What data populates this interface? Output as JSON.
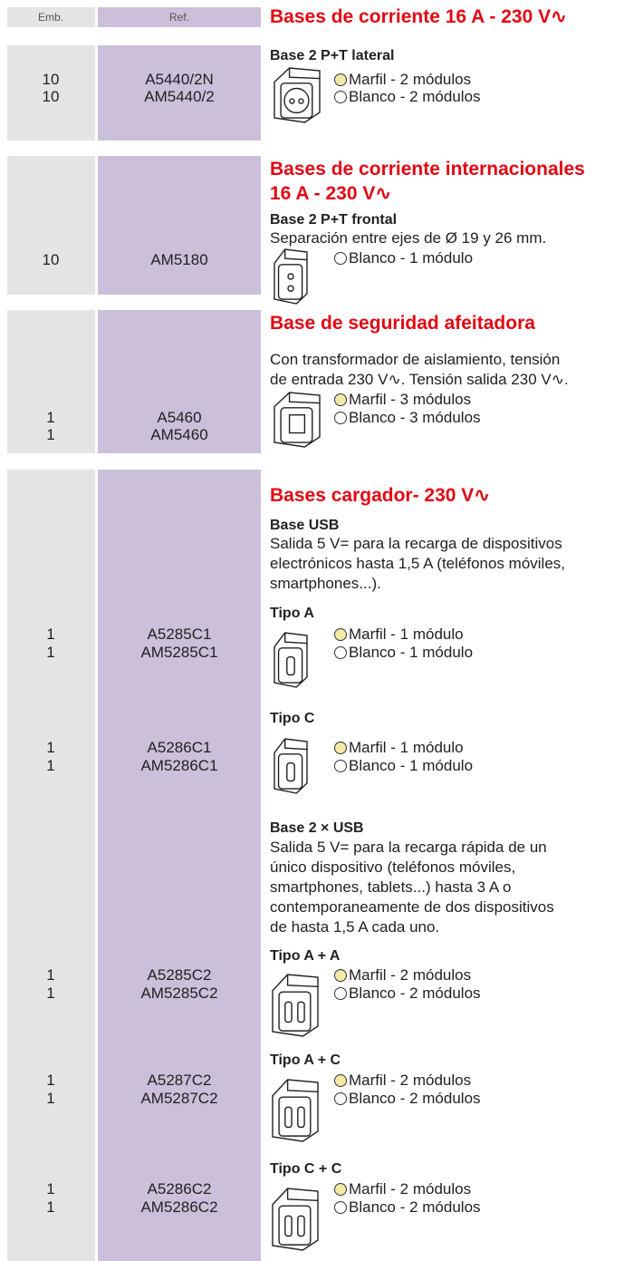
{
  "header": {
    "emb": "Emb.",
    "ref": "Ref.",
    "title": "Bases de corriente 16 A - 230 V∿"
  },
  "sections": [
    {
      "items": [
        {
          "heading": "Base 2 P+T lateral",
          "rows": [
            [
              "10",
              "A5440/2N",
              "Marfil - 2 módulos"
            ],
            [
              "10",
              "AM5440/2",
              "Blanco - 2 módulos"
            ]
          ]
        }
      ]
    },
    {
      "title": [
        "Bases de corriente internacionales",
        "16 A - 230 V∿"
      ],
      "items": [
        {
          "heading": "Base 2 P+T frontal",
          "text": [
            "Separación entre ejes de Ø 19 y 26 mm."
          ],
          "rows": [
            [
              "10",
              "AM5180",
              "Blanco - 1 módulo"
            ]
          ]
        }
      ]
    },
    {
      "title": [
        "Base de seguridad afeitadora"
      ],
      "items": [
        {
          "text": [
            "Con transformador de aislamiento, tensión",
            "de entrada 230 V∿. Tensión salida 230 V∿."
          ],
          "rows": [
            [
              "1",
              "A5460",
              "Marfil - 3 módulos"
            ],
            [
              "1",
              "AM5460",
              "Blanco - 3 módulos"
            ]
          ]
        }
      ]
    },
    {
      "title": [
        "Bases cargador- 230 V∿"
      ],
      "items": [
        {
          "heading": "Base USB",
          "text": [
            "Salida 5 V= para la recarga de dispositivos",
            "electrónicos hasta 1,5 A (teléfonos móviles,",
            "smartphones...)."
          ]
        },
        {
          "heading": "Tipo A",
          "rows": [
            [
              "1",
              "A5285C1",
              "Marfil - 1 módulo"
            ],
            [
              "1",
              "AM5285C1",
              "Blanco - 1 módulo"
            ]
          ]
        },
        {
          "heading": "Tipo C",
          "rows": [
            [
              "1",
              "A5286C1",
              "Marfil - 1 módulo"
            ],
            [
              "1",
              "AM5286C1",
              "Blanco - 1 módulo"
            ]
          ]
        },
        {
          "heading": "Base 2 × USB",
          "text": [
            "Salida 5 V= para la recarga rápida de un",
            "único dispositivo (teléfonos móviles,",
            "smartphones, tablets...) hasta 3 A o",
            "contemporaneamente de dos dispositivos",
            "de hasta 1,5 A cada uno."
          ]
        },
        {
          "heading": "Tipo A + A",
          "rows": [
            [
              "1",
              "A5285C2",
              "Marfil - 2 módulos"
            ],
            [
              "1",
              "AM5285C2",
              "Blanco - 2 módulos"
            ]
          ]
        },
        {
          "heading": "Tipo A + C",
          "rows": [
            [
              "1",
              "A5287C2",
              "Marfil - 2 módulos"
            ],
            [
              "1",
              "AM5287C2",
              "Blanco - 2 módulos"
            ]
          ]
        },
        {
          "heading": "Tipo C + C",
          "rows": [
            [
              "1",
              "A5286C2",
              "Marfil - 2 módulos"
            ],
            [
              "1",
              "AM5286C2",
              "Blanco - 2 módulos"
            ]
          ]
        }
      ]
    }
  ]
}
